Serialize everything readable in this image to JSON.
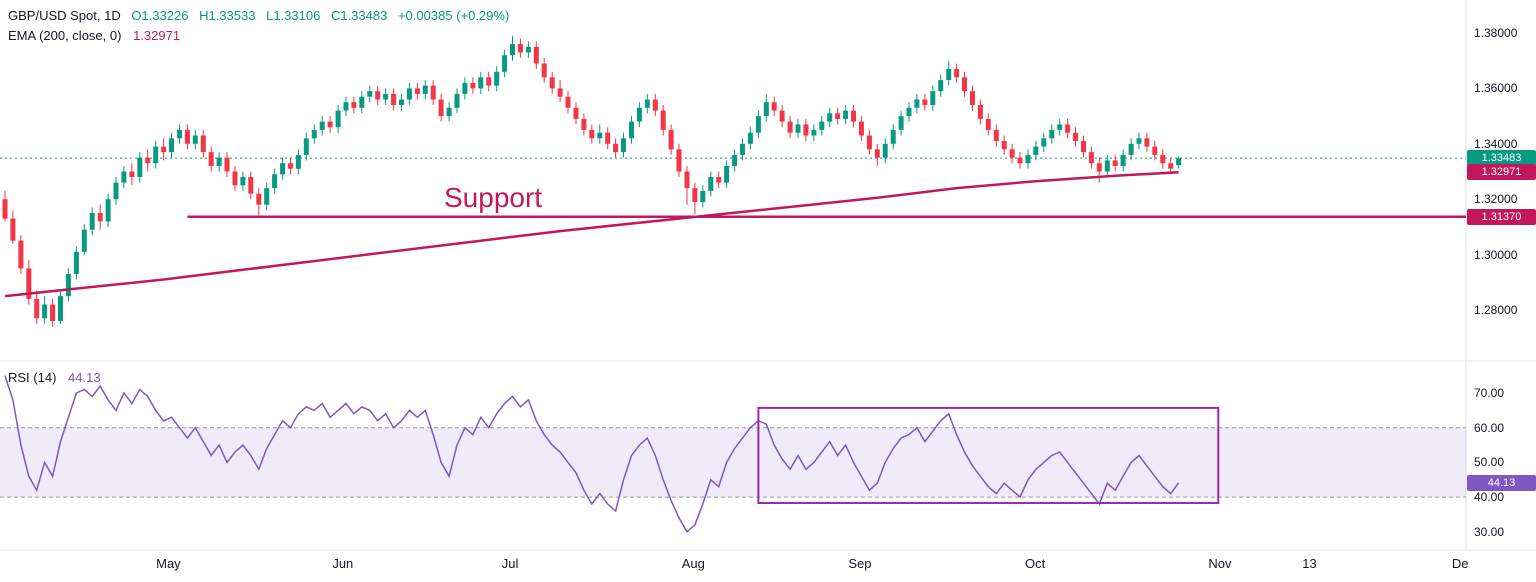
{
  "header": {
    "symbol_title": "GBP/USD Spot, 1D",
    "ohlc": {
      "o": "O1.33226",
      "h": "H1.33533",
      "l": "L1.33106",
      "c": "C1.33483",
      "change": "+0.00385 (+0.29%)"
    },
    "ema_label": "EMA (200, close, 0)",
    "ema_value": "1.32971"
  },
  "rsi_legend": {
    "label": "RSI (14)",
    "value": "44.13"
  },
  "annotations": {
    "support_label": "Support"
  },
  "price_axis": {
    "badges": [
      {
        "text": "1.33483",
        "price": 1.33483,
        "color": "#089981"
      },
      {
        "text": "1.32971",
        "price": 1.32971,
        "color": "#c2185b"
      },
      {
        "text": "1.31370",
        "price": 1.3137,
        "color": "#c2185b"
      }
    ]
  },
  "rsi_axis": {
    "badge": {
      "text": "44.13",
      "value": 44.13,
      "color": "#7e57c2"
    }
  },
  "colors": {
    "up": "#089981",
    "down": "#f23645",
    "ema": "#c2185b",
    "support": "#c2185b",
    "rsi": "#7e57c2",
    "rsi_band_fill": "rgba(126,87,194,0.12)",
    "rsi_band_border": "#9598a1",
    "box": "#9c27b0",
    "grid": "#e0e3eb",
    "text": "#131722"
  },
  "chart_data": [
    {
      "type": "candlestick",
      "title": "GBP/USD Spot, 1D",
      "x_unit": "trading_day_index",
      "ylim": [
        1.2655,
        1.392
      ],
      "y_tick_labels": [
        "1.38000",
        "1.36000",
        "1.34000",
        "1.32000",
        "1.30000",
        "1.28000"
      ],
      "y_tick_values": [
        1.38,
        1.36,
        1.34,
        1.32,
        1.3,
        1.28
      ],
      "x_tick_labels": [
        {
          "text": "May",
          "i": 20.6
        },
        {
          "text": "Jun",
          "i": 42.6
        },
        {
          "text": "Jul",
          "i": 63.7
        },
        {
          "text": "Aug",
          "i": 86.8
        },
        {
          "text": "Sep",
          "i": 107.8
        },
        {
          "text": "Oct",
          "i": 129.9
        },
        {
          "text": "Nov",
          "i": 153.2
        },
        {
          "text": "13",
          "i": 164.5
        },
        {
          "text": "De",
          "i": 183.5
        }
      ],
      "candles": [
        [
          1.32,
          1.323,
          1.312,
          1.313
        ],
        [
          1.313,
          1.316,
          1.304,
          1.305
        ],
        [
          1.305,
          1.307,
          1.293,
          1.295
        ],
        [
          1.295,
          1.298,
          1.282,
          1.284
        ],
        [
          1.284,
          1.287,
          1.275,
          1.277
        ],
        [
          1.277,
          1.285,
          1.275,
          1.282
        ],
        [
          1.282,
          1.284,
          1.274,
          1.276
        ],
        [
          1.276,
          1.287,
          1.275,
          1.285
        ],
        [
          1.285,
          1.295,
          1.283,
          1.293
        ],
        [
          1.293,
          1.303,
          1.291,
          1.301
        ],
        [
          1.301,
          1.311,
          1.3,
          1.309
        ],
        [
          1.309,
          1.317,
          1.307,
          1.315
        ],
        [
          1.315,
          1.318,
          1.309,
          1.312
        ],
        [
          1.312,
          1.322,
          1.31,
          1.32
        ],
        [
          1.32,
          1.328,
          1.318,
          1.326
        ],
        [
          1.326,
          1.332,
          1.324,
          1.33
        ],
        [
          1.33,
          1.333,
          1.325,
          1.328
        ],
        [
          1.328,
          1.337,
          1.326,
          1.335
        ],
        [
          1.335,
          1.338,
          1.33,
          1.333
        ],
        [
          1.333,
          1.341,
          1.331,
          1.339
        ],
        [
          1.339,
          1.342,
          1.334,
          1.337
        ],
        [
          1.337,
          1.344,
          1.335,
          1.342
        ],
        [
          1.342,
          1.347,
          1.34,
          1.345
        ],
        [
          1.345,
          1.347,
          1.338,
          1.34
        ],
        [
          1.34,
          1.345,
          1.338,
          1.343
        ],
        [
          1.343,
          1.345,
          1.335,
          1.337
        ],
        [
          1.337,
          1.339,
          1.33,
          1.332
        ],
        [
          1.332,
          1.337,
          1.33,
          1.335
        ],
        [
          1.335,
          1.337,
          1.328,
          1.33
        ],
        [
          1.33,
          1.332,
          1.323,
          1.325
        ],
        [
          1.325,
          1.33,
          1.323,
          1.328
        ],
        [
          1.328,
          1.33,
          1.32,
          1.322
        ],
        [
          1.322,
          1.324,
          1.314,
          1.318
        ],
        [
          1.318,
          1.326,
          1.316,
          1.324
        ],
        [
          1.324,
          1.331,
          1.322,
          1.329
        ],
        [
          1.329,
          1.335,
          1.327,
          1.333
        ],
        [
          1.333,
          1.335,
          1.329,
          1.331
        ],
        [
          1.331,
          1.338,
          1.329,
          1.336
        ],
        [
          1.336,
          1.344,
          1.334,
          1.342
        ],
        [
          1.342,
          1.347,
          1.34,
          1.345
        ],
        [
          1.345,
          1.35,
          1.343,
          1.348
        ],
        [
          1.348,
          1.35,
          1.344,
          1.346
        ],
        [
          1.346,
          1.354,
          1.344,
          1.352
        ],
        [
          1.352,
          1.357,
          1.35,
          1.355
        ],
        [
          1.355,
          1.357,
          1.351,
          1.353
        ],
        [
          1.353,
          1.359,
          1.351,
          1.357
        ],
        [
          1.357,
          1.361,
          1.355,
          1.359
        ],
        [
          1.359,
          1.361,
          1.354,
          1.356
        ],
        [
          1.356,
          1.36,
          1.354,
          1.358
        ],
        [
          1.358,
          1.36,
          1.352,
          1.354
        ],
        [
          1.354,
          1.358,
          1.352,
          1.356
        ],
        [
          1.356,
          1.362,
          1.354,
          1.36
        ],
        [
          1.36,
          1.362,
          1.356,
          1.358
        ],
        [
          1.358,
          1.363,
          1.356,
          1.361
        ],
        [
          1.361,
          1.363,
          1.354,
          1.356
        ],
        [
          1.356,
          1.358,
          1.348,
          1.35
        ],
        [
          1.35,
          1.355,
          1.348,
          1.353
        ],
        [
          1.353,
          1.36,
          1.351,
          1.358
        ],
        [
          1.358,
          1.364,
          1.356,
          1.362
        ],
        [
          1.362,
          1.364,
          1.358,
          1.36
        ],
        [
          1.36,
          1.366,
          1.358,
          1.364
        ],
        [
          1.364,
          1.366,
          1.359,
          1.361
        ],
        [
          1.361,
          1.368,
          1.359,
          1.366
        ],
        [
          1.366,
          1.374,
          1.364,
          1.372
        ],
        [
          1.372,
          1.379,
          1.37,
          1.376
        ],
        [
          1.376,
          1.378,
          1.371,
          1.373
        ],
        [
          1.373,
          1.377,
          1.371,
          1.375
        ],
        [
          1.375,
          1.377,
          1.367,
          1.369
        ],
        [
          1.369,
          1.371,
          1.362,
          1.364
        ],
        [
          1.364,
          1.366,
          1.358,
          1.36
        ],
        [
          1.36,
          1.363,
          1.355,
          1.357
        ],
        [
          1.357,
          1.359,
          1.351,
          1.353
        ],
        [
          1.353,
          1.355,
          1.347,
          1.349
        ],
        [
          1.349,
          1.351,
          1.343,
          1.345
        ],
        [
          1.345,
          1.347,
          1.34,
          1.342
        ],
        [
          1.342,
          1.347,
          1.34,
          1.344
        ],
        [
          1.344,
          1.346,
          1.338,
          1.34
        ],
        [
          1.34,
          1.342,
          1.335,
          1.337
        ],
        [
          1.337,
          1.344,
          1.335,
          1.342
        ],
        [
          1.342,
          1.35,
          1.34,
          1.348
        ],
        [
          1.348,
          1.355,
          1.346,
          1.353
        ],
        [
          1.353,
          1.358,
          1.351,
          1.356
        ],
        [
          1.356,
          1.358,
          1.35,
          1.352
        ],
        [
          1.352,
          1.354,
          1.343,
          1.345
        ],
        [
          1.345,
          1.347,
          1.336,
          1.338
        ],
        [
          1.338,
          1.34,
          1.328,
          1.33
        ],
        [
          1.33,
          1.332,
          1.318,
          1.324
        ],
        [
          1.324,
          1.326,
          1.3145,
          1.319
        ],
        [
          1.319,
          1.325,
          1.317,
          1.323
        ],
        [
          1.323,
          1.33,
          1.321,
          1.328
        ],
        [
          1.328,
          1.33,
          1.324,
          1.326
        ],
        [
          1.326,
          1.334,
          1.324,
          1.332
        ],
        [
          1.332,
          1.338,
          1.33,
          1.336
        ],
        [
          1.336,
          1.342,
          1.334,
          1.34
        ],
        [
          1.34,
          1.346,
          1.338,
          1.344
        ],
        [
          1.344,
          1.352,
          1.342,
          1.35
        ],
        [
          1.35,
          1.358,
          1.348,
          1.355
        ],
        [
          1.355,
          1.357,
          1.35,
          1.352
        ],
        [
          1.352,
          1.354,
          1.346,
          1.348
        ],
        [
          1.348,
          1.35,
          1.342,
          1.344
        ],
        [
          1.344,
          1.349,
          1.342,
          1.347
        ],
        [
          1.347,
          1.349,
          1.341,
          1.343
        ],
        [
          1.343,
          1.347,
          1.341,
          1.345
        ],
        [
          1.345,
          1.35,
          1.343,
          1.348
        ],
        [
          1.348,
          1.353,
          1.346,
          1.351
        ],
        [
          1.351,
          1.353,
          1.347,
          1.349
        ],
        [
          1.349,
          1.354,
          1.347,
          1.352
        ],
        [
          1.352,
          1.354,
          1.346,
          1.348
        ],
        [
          1.348,
          1.35,
          1.341,
          1.343
        ],
        [
          1.343,
          1.345,
          1.336,
          1.338
        ],
        [
          1.338,
          1.34,
          1.332,
          1.335
        ],
        [
          1.335,
          1.342,
          1.333,
          1.34
        ],
        [
          1.34,
          1.347,
          1.338,
          1.345
        ],
        [
          1.345,
          1.352,
          1.343,
          1.35
        ],
        [
          1.35,
          1.355,
          1.348,
          1.353
        ],
        [
          1.353,
          1.358,
          1.351,
          1.356
        ],
        [
          1.356,
          1.358,
          1.352,
          1.354
        ],
        [
          1.354,
          1.361,
          1.352,
          1.359
        ],
        [
          1.359,
          1.365,
          1.357,
          1.363
        ],
        [
          1.363,
          1.37,
          1.361,
          1.367
        ],
        [
          1.367,
          1.369,
          1.362,
          1.364
        ],
        [
          1.364,
          1.366,
          1.357,
          1.359
        ],
        [
          1.359,
          1.361,
          1.352,
          1.354
        ],
        [
          1.354,
          1.356,
          1.347,
          1.349
        ],
        [
          1.349,
          1.351,
          1.343,
          1.345
        ],
        [
          1.345,
          1.347,
          1.339,
          1.341
        ],
        [
          1.341,
          1.343,
          1.336,
          1.338
        ],
        [
          1.338,
          1.34,
          1.333,
          1.335
        ],
        [
          1.335,
          1.337,
          1.331,
          1.333
        ],
        [
          1.333,
          1.338,
          1.331,
          1.336
        ],
        [
          1.336,
          1.341,
          1.334,
          1.339
        ],
        [
          1.339,
          1.344,
          1.337,
          1.342
        ],
        [
          1.342,
          1.347,
          1.34,
          1.345
        ],
        [
          1.345,
          1.349,
          1.343,
          1.347
        ],
        [
          1.347,
          1.349,
          1.342,
          1.344
        ],
        [
          1.344,
          1.346,
          1.339,
          1.341
        ],
        [
          1.341,
          1.343,
          1.335,
          1.337
        ],
        [
          1.337,
          1.339,
          1.331,
          1.333
        ],
        [
          1.333,
          1.335,
          1.326,
          1.33
        ],
        [
          1.33,
          1.336,
          1.328,
          1.334
        ],
        [
          1.334,
          1.336,
          1.33,
          1.332
        ],
        [
          1.332,
          1.338,
          1.33,
          1.336
        ],
        [
          1.336,
          1.342,
          1.334,
          1.34
        ],
        [
          1.34,
          1.344,
          1.338,
          1.342
        ],
        [
          1.342,
          1.344,
          1.337,
          1.339
        ],
        [
          1.339,
          1.341,
          1.334,
          1.336
        ],
        [
          1.336,
          1.338,
          1.331,
          1.333
        ],
        [
          1.333,
          1.335,
          1.329,
          1.331
        ],
        [
          1.33226,
          1.33533,
          1.33106,
          1.33483
        ]
      ],
      "overlays": [
        {
          "name": "EMA (200, close, 0)",
          "type": "line",
          "color": "#c2185b",
          "points": [
            [
              0,
              1.285
            ],
            [
              10,
              1.288
            ],
            [
              20,
              1.291
            ],
            [
              30,
              1.2945
            ],
            [
              40,
              1.298
            ],
            [
              50,
              1.3015
            ],
            [
              60,
              1.305
            ],
            [
              70,
              1.3085
            ],
            [
              80,
              1.3115
            ],
            [
              90,
              1.3145
            ],
            [
              100,
              1.3175
            ],
            [
              110,
              1.3205
            ],
            [
              120,
              1.324
            ],
            [
              130,
              1.3265
            ],
            [
              140,
              1.3285
            ],
            [
              148,
              1.3297
            ]
          ]
        },
        {
          "name": "Support",
          "type": "hline",
          "value": 1.3137,
          "from_i": 23,
          "color": "#c2185b"
        },
        {
          "name": "current-price-line",
          "type": "dotted_hline",
          "value": 1.33483,
          "color": "#089981"
        }
      ]
    },
    {
      "type": "line",
      "title": "RSI (14)",
      "ylim": [
        25,
        79
      ],
      "y_tick_labels": [
        "70.00",
        "60.00",
        "50.00",
        "40.00",
        "30.00"
      ],
      "y_tick_values": [
        70,
        60,
        50,
        40,
        30
      ],
      "values": [
        75,
        68,
        55,
        46,
        42,
        50,
        46,
        56,
        63,
        70,
        71,
        69,
        72,
        68,
        65,
        70,
        67,
        71,
        69,
        65,
        62,
        63,
        60,
        57,
        60,
        56,
        52,
        55,
        50,
        53,
        55,
        52,
        48,
        54,
        58,
        62,
        60,
        64,
        66,
        65,
        67,
        63,
        65,
        67,
        64,
        66,
        65,
        62,
        64,
        60,
        62,
        65,
        63,
        65,
        58,
        50,
        46,
        55,
        60,
        58,
        63,
        60,
        64,
        67,
        69,
        66,
        68,
        62,
        58,
        55,
        53,
        50,
        47,
        42,
        38,
        41,
        38,
        36,
        45,
        52,
        55,
        57,
        52,
        45,
        39,
        34,
        30,
        32,
        38,
        45,
        43,
        50,
        54,
        57,
        60,
        62,
        61,
        55,
        51,
        48,
        52,
        48,
        50,
        53,
        56,
        52,
        55,
        50,
        46,
        42,
        44,
        50,
        54,
        57,
        58,
        60,
        56,
        59,
        62,
        64,
        58,
        53,
        49,
        46,
        43,
        41,
        44,
        42,
        40,
        45,
        48,
        50,
        52,
        53,
        50,
        47,
        44,
        41,
        38,
        44,
        42,
        46,
        50,
        52,
        49,
        46,
        43,
        41,
        44.13
      ],
      "bands": {
        "upper": 60,
        "lower": 40
      },
      "box_annotation": {
        "i_start": 95,
        "i_end": 153,
        "rsi_top": 65.7,
        "rsi_bottom": 38.3,
        "color": "#9c27b0"
      }
    }
  ]
}
